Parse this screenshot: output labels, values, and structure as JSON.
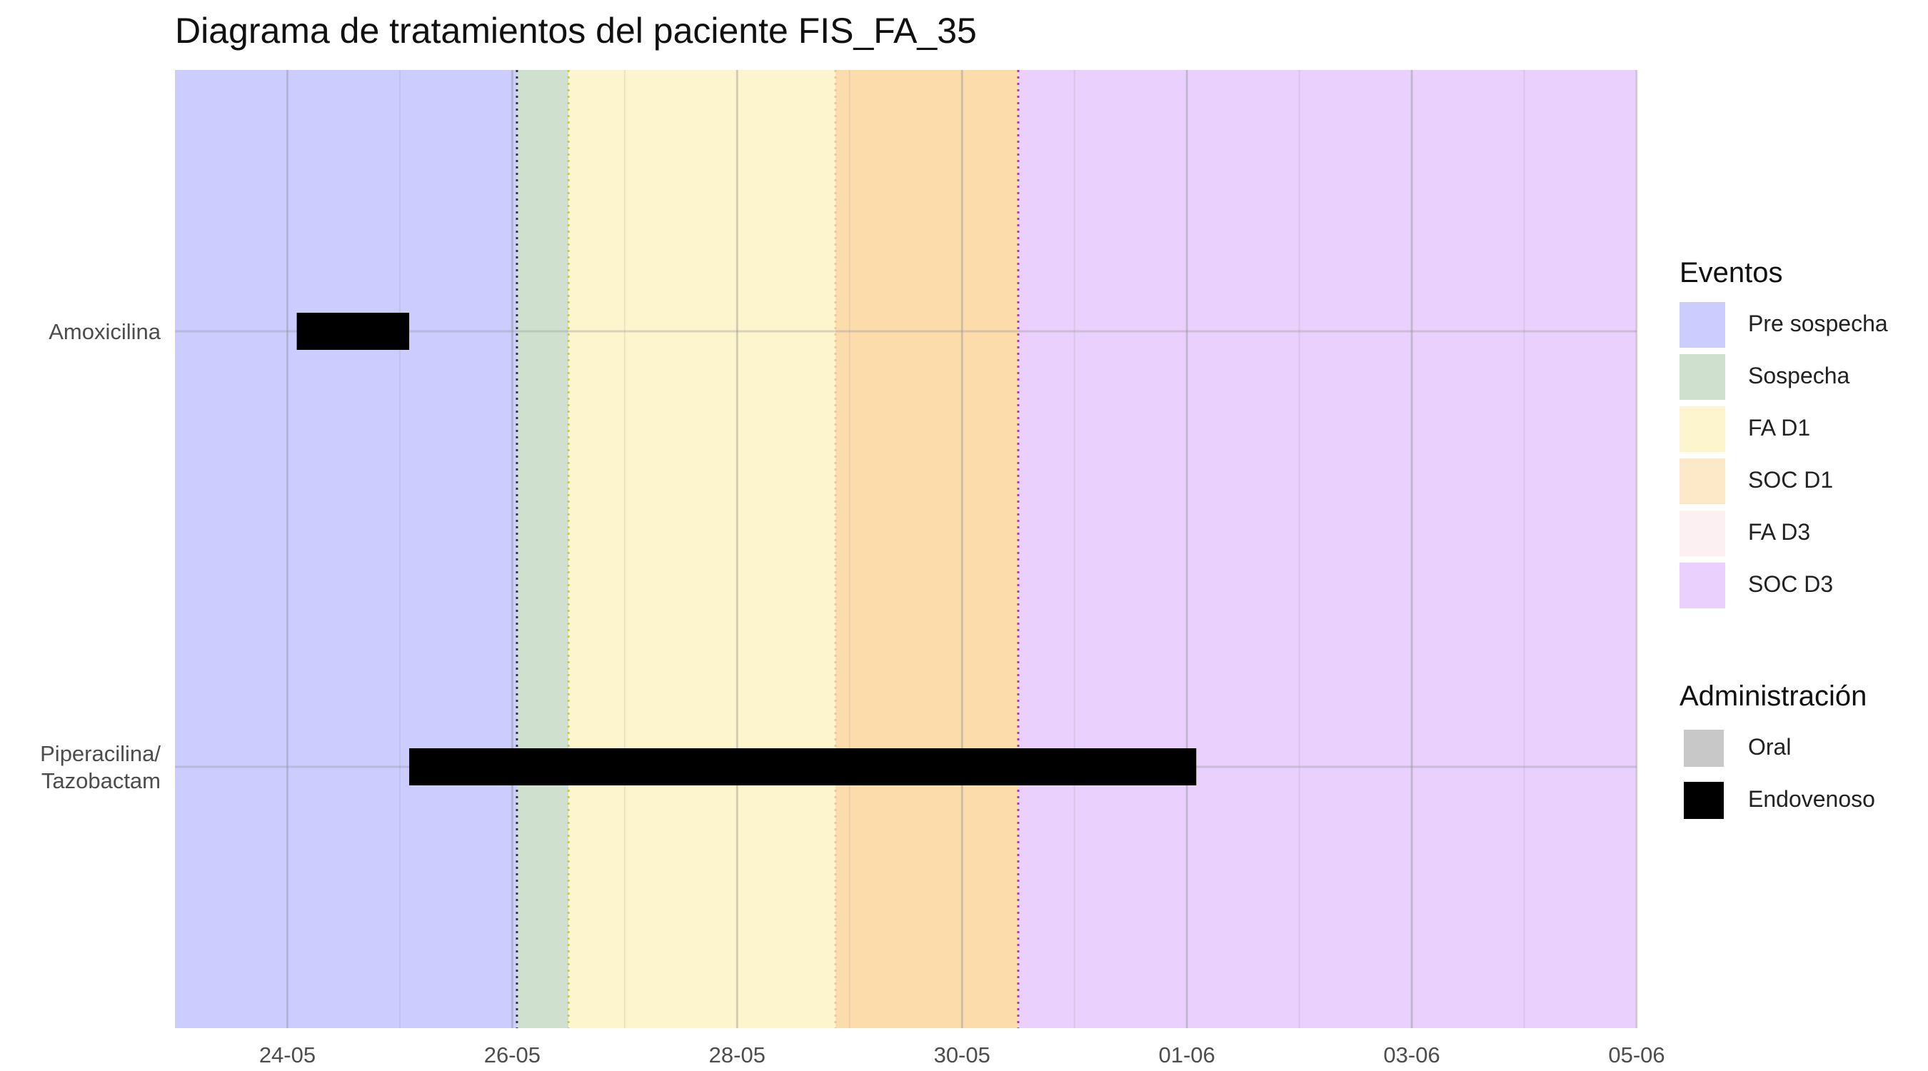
{
  "chart_data": {
    "type": "bar",
    "title": "Diagrama de tratamientos del paciente FIS_FA_35",
    "xlabel": "",
    "ylabel": "",
    "x_axis": {
      "type": "date",
      "range": [
        "2024-05-23",
        "2024-06-05"
      ],
      "tick_dates": [
        "2024-05-24",
        "2024-05-26",
        "2024-05-28",
        "2024-05-30",
        "2024-06-01",
        "2024-06-03",
        "2024-06-05"
      ],
      "tick_labels": [
        "24-05",
        "26-05",
        "28-05",
        "30-05",
        "01-06",
        "03-06",
        "05-06"
      ]
    },
    "categories": [
      "Amoxicilina",
      "Piperacilina/\nTazobactam"
    ],
    "bars": [
      {
        "category": "Amoxicilina",
        "start": "2024-05-24T02:00",
        "end": "2024-05-25T02:00",
        "administration": "Oral"
      },
      {
        "category": "Piperacilina/\nTazobactam",
        "start": "2024-05-25T02:00",
        "end": "2024-06-01T02:00",
        "administration": "Endovenoso"
      }
    ],
    "event_bands": [
      {
        "name": "Pre sospecha",
        "start": "2024-05-23",
        "end": "2024-05-26T01:00",
        "color": "#ccccff"
      },
      {
        "name": "Sospecha",
        "start": "2024-05-26T01:00",
        "end": "2024-05-26T12:00",
        "color": "#cfe0cf"
      },
      {
        "name": "FA D1",
        "start": "2024-05-26T12:00",
        "end": "2024-05-28T21:00",
        "color": "#fdf5cd"
      },
      {
        "name": "SOC D1",
        "start": "2024-05-28T21:00",
        "end": "2024-05-30T12:00",
        "color": "#fddcab"
      },
      {
        "name": "SOC D3",
        "start": "2024-05-30T12:00",
        "end": "2024-06-05",
        "color": "#ead0fd"
      }
    ],
    "event_lines": [
      {
        "date": "2024-05-26T01:00",
        "color": "#333333"
      },
      {
        "date": "2024-05-26T12:00",
        "color": "#c9c94a"
      },
      {
        "date": "2024-05-28T21:00",
        "color": "#e8c898"
      },
      {
        "date": "2024-05-30T12:00",
        "color": "#a03cc8"
      }
    ],
    "grid": true,
    "legend_position": "right"
  },
  "legends": {
    "eventos": {
      "title": "Eventos",
      "items": [
        {
          "label": "Pre sospecha",
          "color": "#ccccff"
        },
        {
          "label": "Sospecha",
          "color": "#cfe0cf"
        },
        {
          "label": "FA D1",
          "color": "#fdf5cd"
        },
        {
          "label": "SOC D1",
          "color": "#fde8c8"
        },
        {
          "label": "FA D3",
          "color": "#fdf0f2"
        },
        {
          "label": "SOC D3",
          "color": "#ead0fd"
        }
      ]
    },
    "administracion": {
      "title": "Administración",
      "items": [
        {
          "label": "Oral",
          "color": "#c8c8c8"
        },
        {
          "label": "Endovenoso",
          "color": "#000000"
        }
      ]
    }
  }
}
